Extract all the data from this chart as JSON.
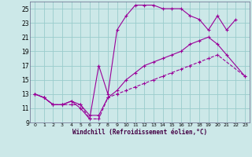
{
  "background_color": "#cce8e8",
  "grid_color": "#99cccc",
  "line_color": "#990099",
  "xlabel": "Windchill (Refroidissement éolien,°C)",
  "xlim": [
    -0.5,
    23.5
  ],
  "ylim": [
    9,
    26
  ],
  "yticks": [
    9,
    11,
    13,
    15,
    17,
    19,
    21,
    23,
    25
  ],
  "xticks": [
    0,
    1,
    2,
    3,
    4,
    5,
    6,
    7,
    8,
    9,
    10,
    11,
    12,
    13,
    14,
    15,
    16,
    17,
    18,
    19,
    20,
    21,
    22,
    23
  ],
  "series1_x": [
    0,
    1,
    2,
    3,
    4,
    5,
    6,
    7,
    8,
    9,
    10,
    11,
    12,
    13,
    14,
    15,
    16,
    17,
    18,
    19,
    20,
    23
  ],
  "series1_y": [
    13,
    12.5,
    11.5,
    11.5,
    11.5,
    11.5,
    9.5,
    9.5,
    12.5,
    13,
    13.5,
    14,
    14.5,
    15,
    15.5,
    16,
    16.5,
    17,
    17.5,
    18,
    18.5,
    15.5
  ],
  "series2_x": [
    0,
    1,
    2,
    3,
    4,
    5,
    6,
    7,
    8,
    9,
    10,
    11,
    12,
    13,
    14,
    15,
    16,
    17,
    18,
    19,
    20,
    21,
    23
  ],
  "series2_y": [
    13,
    12.5,
    11.5,
    11.5,
    12,
    11.5,
    10,
    10,
    12.5,
    13.5,
    15,
    16,
    17,
    17.5,
    18,
    18.5,
    19,
    20,
    20.5,
    21,
    20,
    18.5,
    15.5
  ],
  "series3_x": [
    0,
    1,
    2,
    3,
    4,
    5,
    6,
    7,
    8,
    9,
    10,
    11,
    12,
    13,
    14,
    15,
    16,
    17,
    18,
    19,
    20,
    21,
    22
  ],
  "series3_y": [
    13,
    12.5,
    11.5,
    11.5,
    12,
    11,
    9.5,
    17,
    13,
    22,
    24,
    25.5,
    25.5,
    25.5,
    25,
    25,
    25,
    24,
    23.5,
    22,
    24,
    22,
    23.5
  ]
}
